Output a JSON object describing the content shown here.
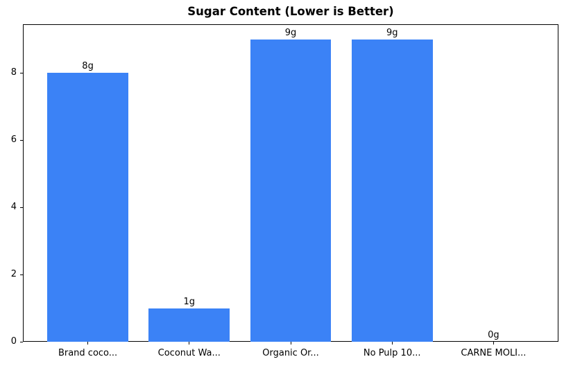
{
  "chart_data": {
    "type": "bar",
    "title": "Sugar Content (Lower is Better)",
    "categories": [
      "Brand coco...",
      "Coconut Wa...",
      "Organic Or...",
      "No Pulp 10...",
      "CARNE MOLI..."
    ],
    "values": [
      8,
      1,
      9,
      9,
      0
    ],
    "value_labels": [
      "8g",
      "1g",
      "9g",
      "9g",
      "0g"
    ],
    "xlabel": "",
    "ylabel": "",
    "ylim": [
      0,
      9.45
    ],
    "yticks": [
      0,
      2,
      4,
      6,
      8
    ],
    "bar_color": "#3b82f6",
    "text_color": "#000000",
    "grid": false,
    "legend_position": "none"
  }
}
